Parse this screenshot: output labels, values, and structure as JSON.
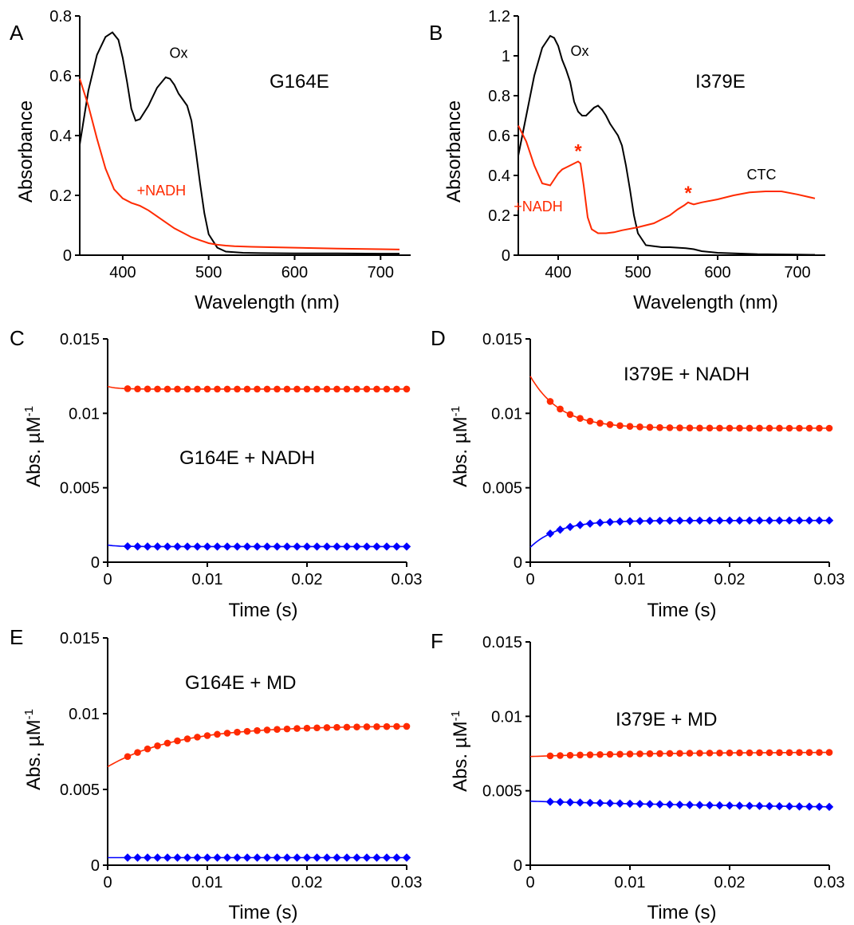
{
  "colors": {
    "red": "#ff2a00",
    "blue": "#0000ff",
    "black": "#000000"
  },
  "chart_data": [
    {
      "panel": "A",
      "type": "line",
      "title": "G164E",
      "xlabel": "Wavelength (nm)",
      "ylabel": "Absorbance",
      "xlim": [
        350,
        735
      ],
      "ylim": [
        0,
        0.8
      ],
      "xticks": [
        400,
        500,
        600,
        700
      ],
      "xtick_labels": [
        "400",
        "500",
        "600",
        "700"
      ],
      "yticks": [
        0,
        0.2,
        0.4,
        0.6,
        0.8
      ],
      "ytick_labels": [
        "0",
        "0.2",
        "0.4",
        "0.6",
        "0.8"
      ],
      "series": [
        {
          "name": "Ox",
          "color": "#000000",
          "x": [
            350,
            360,
            370,
            380,
            388,
            395,
            400,
            405,
            410,
            415,
            420,
            430,
            440,
            450,
            455,
            460,
            465,
            470,
            475,
            480,
            485,
            490,
            495,
            500,
            510,
            520,
            540,
            560,
            600,
            650,
            700,
            722
          ],
          "y": [
            0.37,
            0.55,
            0.67,
            0.73,
            0.745,
            0.72,
            0.66,
            0.58,
            0.49,
            0.45,
            0.455,
            0.5,
            0.56,
            0.595,
            0.59,
            0.57,
            0.54,
            0.52,
            0.5,
            0.45,
            0.35,
            0.24,
            0.14,
            0.07,
            0.025,
            0.012,
            0.008,
            0.007,
            0.006,
            0.006,
            0.005,
            0.005
          ]
        },
        {
          "name": "+NADH",
          "color": "#ff2a00",
          "x": [
            350,
            360,
            370,
            380,
            390,
            400,
            410,
            420,
            430,
            440,
            450,
            460,
            470,
            480,
            490,
            500,
            510,
            520,
            530,
            550,
            600,
            650,
            700,
            722
          ],
          "y": [
            0.59,
            0.5,
            0.39,
            0.29,
            0.22,
            0.19,
            0.175,
            0.165,
            0.15,
            0.13,
            0.11,
            0.09,
            0.075,
            0.06,
            0.05,
            0.04,
            0.035,
            0.032,
            0.03,
            0.028,
            0.025,
            0.022,
            0.02,
            0.019
          ]
        }
      ],
      "annotations": [
        {
          "text": "Ox",
          "x": 465,
          "y": 0.66,
          "color": "#000000"
        },
        {
          "text": "+NADH",
          "x": 445,
          "y": 0.2,
          "color": "#ff2a00"
        }
      ]
    },
    {
      "panel": "B",
      "type": "line",
      "title": "I379E",
      "xlabel": "Wavelength (nm)",
      "ylabel": "Absorbance",
      "xlim": [
        350,
        735
      ],
      "ylim": [
        0,
        1.2
      ],
      "xticks": [
        400,
        500,
        600,
        700
      ],
      "xtick_labels": [
        "400",
        "500",
        "600",
        "700"
      ],
      "yticks": [
        0,
        0.2,
        0.4,
        0.6,
        0.8,
        1.0,
        1.2
      ],
      "ytick_labels": [
        "0",
        "0.2",
        "0.4",
        "0.6",
        "0.8",
        "1",
        "1.2"
      ],
      "series": [
        {
          "name": "Ox",
          "color": "#000000",
          "x": [
            350,
            360,
            370,
            380,
            390,
            395,
            400,
            405,
            410,
            415,
            420,
            425,
            430,
            435,
            440,
            445,
            450,
            455,
            460,
            465,
            470,
            475,
            480,
            485,
            490,
            495,
            500,
            510,
            520,
            530,
            540,
            560,
            570,
            580,
            600,
            650,
            700,
            722
          ],
          "y": [
            0.5,
            0.7,
            0.9,
            1.04,
            1.1,
            1.09,
            1.05,
            0.98,
            0.93,
            0.87,
            0.77,
            0.72,
            0.7,
            0.7,
            0.72,
            0.74,
            0.75,
            0.73,
            0.7,
            0.66,
            0.63,
            0.6,
            0.55,
            0.45,
            0.33,
            0.2,
            0.11,
            0.05,
            0.045,
            0.04,
            0.04,
            0.035,
            0.03,
            0.02,
            0.012,
            0.005,
            0.003,
            0.002
          ]
        },
        {
          "name": "+NADH",
          "color": "#ff2a00",
          "x": [
            350,
            360,
            370,
            380,
            390,
            395,
            400,
            405,
            410,
            415,
            420,
            425,
            428,
            432,
            437,
            442,
            450,
            460,
            470,
            480,
            500,
            520,
            530,
            540,
            550,
            558,
            563,
            566,
            570,
            580,
            600,
            620,
            640,
            660,
            680,
            700,
            722
          ],
          "y": [
            0.65,
            0.57,
            0.45,
            0.36,
            0.35,
            0.38,
            0.41,
            0.43,
            0.44,
            0.45,
            0.46,
            0.47,
            0.46,
            0.35,
            0.19,
            0.13,
            0.11,
            0.11,
            0.115,
            0.125,
            0.14,
            0.16,
            0.18,
            0.2,
            0.23,
            0.25,
            0.265,
            0.26,
            0.255,
            0.265,
            0.28,
            0.3,
            0.315,
            0.32,
            0.32,
            0.305,
            0.285
          ]
        }
      ],
      "annotations": [
        {
          "text": "Ox",
          "x": 427,
          "y": 1.0,
          "color": "#000000"
        },
        {
          "text": "+NADH",
          "x": 375,
          "y": 0.22,
          "color": "#ff2a00"
        },
        {
          "text": "*",
          "x": 425,
          "y": 0.49,
          "color": "#ff2a00"
        },
        {
          "text": "*",
          "x": 563,
          "y": 0.28,
          "color": "#ff2a00"
        },
        {
          "text": "CTC",
          "x": 655,
          "y": 0.38,
          "color": "#000000"
        }
      ]
    },
    {
      "panel": "C",
      "type": "scatter",
      "title": "G164E + NADH",
      "xlabel": "Time (s)",
      "ylabel_main": "Abs. µM",
      "ylabel_sup": "-1",
      "xlim": [
        0,
        0.03
      ],
      "ylim": [
        0,
        0.015
      ],
      "xticks": [
        0,
        0.01,
        0.02,
        0.03
      ],
      "xtick_labels": [
        "0",
        "0.01",
        "0.02",
        "0.03"
      ],
      "yticks": [
        0,
        0.005,
        0.01,
        0.015
      ],
      "ytick_labels": [
        "0",
        "0.005",
        "0.01",
        "0.015"
      ],
      "series": [
        {
          "marker": "circle",
          "color": "#ff2a00",
          "x_start": 0.002,
          "x_end": 0.03,
          "count": 29,
          "y_start": 0.0117,
          "y_end": 0.0116,
          "fit_y0": 0.0118,
          "fit_yinf": 0.01163,
          "tau": 0.001
        },
        {
          "marker": "diamond",
          "color": "#0000ff",
          "x_start": 0.002,
          "x_end": 0.03,
          "count": 29,
          "y_start": 0.0011,
          "y_end": 0.001,
          "fit_y0": 0.00115,
          "fit_yinf": 0.00105,
          "tau": 0.001
        }
      ]
    },
    {
      "panel": "D",
      "type": "scatter",
      "title": "I379E + NADH",
      "xlabel": "Time (s)",
      "ylabel_main": "Abs. µM",
      "ylabel_sup": "-1",
      "xlim": [
        0,
        0.03
      ],
      "ylim": [
        0,
        0.015
      ],
      "xticks": [
        0,
        0.01,
        0.02,
        0.03
      ],
      "xtick_labels": [
        "0",
        "0.01",
        "0.02",
        "0.03"
      ],
      "yticks": [
        0,
        0.005,
        0.01,
        0.015
      ],
      "ytick_labels": [
        "0",
        "0.005",
        "0.01",
        "0.015"
      ],
      "series": [
        {
          "marker": "circle",
          "color": "#ff2a00",
          "x_start": 0.002,
          "x_end": 0.03,
          "count": 29,
          "fit_y0": 0.0125,
          "fit_yinf": 0.009,
          "tau": 0.003
        },
        {
          "marker": "diamond",
          "color": "#0000ff",
          "x_start": 0.002,
          "x_end": 0.03,
          "count": 29,
          "fit_y0": 0.001,
          "fit_yinf": 0.0028,
          "tau": 0.0028
        }
      ]
    },
    {
      "panel": "E",
      "type": "scatter",
      "title": "G164E + MD",
      "xlabel": "Time (s)",
      "ylabel_main": "Abs. µM",
      "ylabel_sup": "-1",
      "xlim": [
        0,
        0.03
      ],
      "ylim": [
        0,
        0.015
      ],
      "xticks": [
        0,
        0.01,
        0.02,
        0.03
      ],
      "xtick_labels": [
        "0",
        "0.01",
        "0.02",
        "0.03"
      ],
      "yticks": [
        0,
        0.005,
        0.01,
        0.015
      ],
      "ytick_labels": [
        "0",
        "0.005",
        "0.01",
        "0.015"
      ],
      "series": [
        {
          "marker": "circle",
          "color": "#ff2a00",
          "x_start": 0.002,
          "x_end": 0.03,
          "count": 29,
          "fit_y0": 0.0065,
          "fit_yinf": 0.0092,
          "tau": 0.007
        },
        {
          "marker": "diamond",
          "color": "#0000ff",
          "x_start": 0.002,
          "x_end": 0.03,
          "count": 29,
          "fit_y0": 0.0005,
          "fit_yinf": 0.0005,
          "tau": 0.005
        }
      ]
    },
    {
      "panel": "F",
      "type": "scatter",
      "title": "I379E + MD",
      "xlabel": "Time (s)",
      "ylabel_main": "Abs. µM",
      "ylabel_sup": "-1",
      "xlim": [
        0,
        0.03
      ],
      "ylim": [
        0,
        0.015
      ],
      "xticks": [
        0,
        0.01,
        0.02,
        0.03
      ],
      "xtick_labels": [
        "0",
        "0.01",
        "0.02",
        "0.03"
      ],
      "yticks": [
        0,
        0.005,
        0.01,
        0.015
      ],
      "ytick_labels": [
        "0",
        "0.005",
        "0.01",
        "0.015"
      ],
      "series": [
        {
          "marker": "circle",
          "color": "#ff2a00",
          "x_start": 0.002,
          "x_end": 0.03,
          "count": 29,
          "fit_y0": 0.0073,
          "fit_yinf": 0.0076,
          "tau": 0.012
        },
        {
          "marker": "diamond",
          "color": "#0000ff",
          "x_start": 0.002,
          "x_end": 0.03,
          "count": 29,
          "fit_y0": 0.0043,
          "fit_yinf": 0.0037,
          "tau": 0.03
        }
      ]
    }
  ]
}
